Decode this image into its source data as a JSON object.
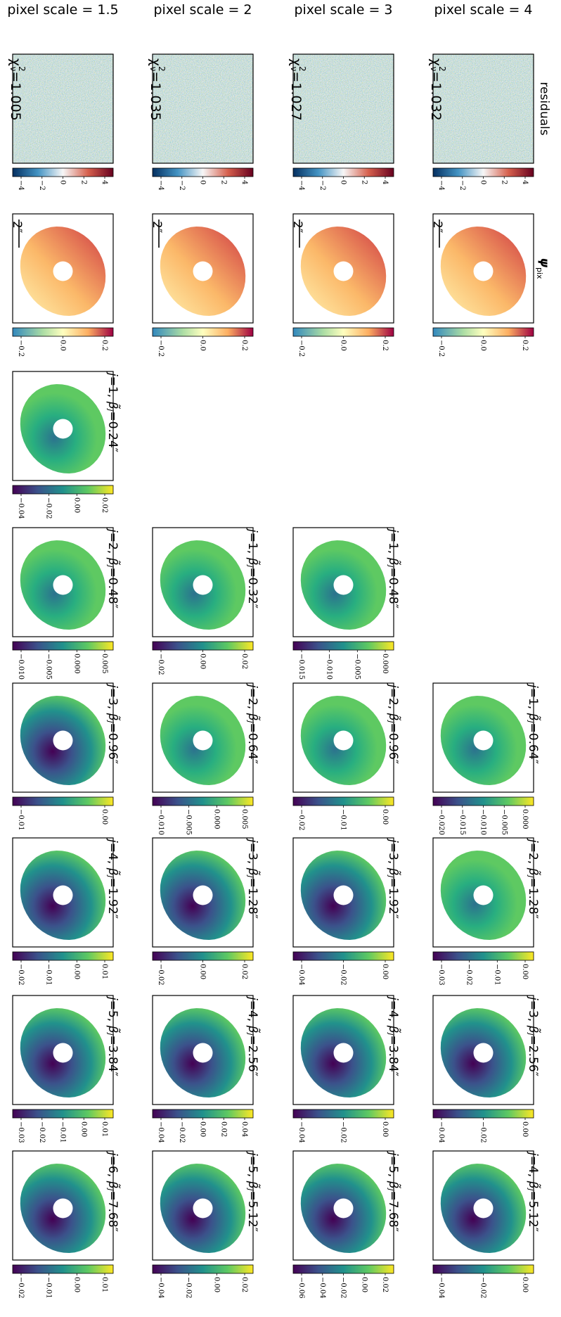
{
  "row_labels": {
    "residuals": "residuals",
    "psi_symbol": "ψ",
    "psi_sub": "pix"
  },
  "chi2_symbol": {
    "symbol": "χ",
    "sup": "2",
    "sub": "ν"
  },
  "wavelet_label": {
    "j_prefix": "j=",
    "sep": ", ",
    "beta_symbol": "β̃",
    "beta_sub": "j",
    "eq": "="
  },
  "columns": [
    {
      "header": "pixel scale = 1.5",
      "residual": {
        "chi2": "=1.005",
        "ticks": [
          "−4",
          "−2",
          "0",
          "2",
          "4"
        ]
      },
      "psi": {
        "scale_bar": "2″",
        "ticks": [
          "−0.2",
          "0.0",
          "0.2"
        ]
      },
      "wavelets": [
        {
          "j": "1",
          "beta": "0.24″",
          "ticks": [
            "−0.04",
            "−0.02",
            "0.00",
            "0.02"
          ]
        },
        {
          "j": "2",
          "beta": "0.48″",
          "ticks": [
            "−0.010",
            "−0.005",
            "0.000",
            "0.005"
          ]
        },
        {
          "j": "3",
          "beta": "0.96″",
          "ticks": [
            "−0.01",
            "0.00"
          ]
        },
        {
          "j": "4",
          "beta": "1.92″",
          "ticks": [
            "−0.02",
            "−0.01",
            "0.00",
            "0.01"
          ]
        },
        {
          "j": "5",
          "beta": "3.84″",
          "ticks": [
            "−0.03",
            "−0.02",
            "−0.01",
            "0.00",
            "0.01"
          ]
        },
        {
          "j": "6",
          "beta": "7.68″",
          "ticks": [
            "−0.02",
            "−0.01",
            "0.00",
            "0.01"
          ]
        }
      ]
    },
    {
      "header": "pixel scale = 2",
      "residual": {
        "chi2": "=1.035",
        "ticks": [
          "−4",
          "−2",
          "0",
          "2",
          "4"
        ]
      },
      "psi": {
        "scale_bar": "2″",
        "ticks": [
          "−0.2",
          "0.0",
          "0.2"
        ]
      },
      "wavelets": [
        {
          "j": "1",
          "beta": "0.32″",
          "ticks": [
            "−0.02",
            "0.00",
            "0.02"
          ]
        },
        {
          "j": "2",
          "beta": "0.64″",
          "ticks": [
            "−0.010",
            "−0.005",
            "0.000",
            "0.005"
          ]
        },
        {
          "j": "3",
          "beta": "1.28″",
          "ticks": [
            "−0.02",
            "0.00",
            "0.02"
          ]
        },
        {
          "j": "4",
          "beta": "2.56″",
          "ticks": [
            "−0.04",
            "−0.02",
            "0.00",
            "0.02",
            "0.04"
          ]
        },
        {
          "j": "5",
          "beta": "5.12″",
          "ticks": [
            "−0.04",
            "−0.02",
            "0.00",
            "0.02"
          ]
        }
      ]
    },
    {
      "header": "pixel scale = 3",
      "residual": {
        "chi2": "=1.027",
        "ticks": [
          "−4",
          "−2",
          "0",
          "2",
          "4"
        ]
      },
      "psi": {
        "scale_bar": "2″",
        "ticks": [
          "−0.2",
          "0.0",
          "0.2"
        ]
      },
      "wavelets": [
        {
          "j": "1",
          "beta": "0.48″",
          "ticks": [
            "−0.015",
            "−0.010",
            "−0.005",
            "0.000"
          ]
        },
        {
          "j": "2",
          "beta": "0.96″",
          "ticks": [
            "−0.02",
            "−0.01",
            "0.00"
          ]
        },
        {
          "j": "3",
          "beta": "1.92″",
          "ticks": [
            "−0.04",
            "−0.02",
            "0.00"
          ]
        },
        {
          "j": "4",
          "beta": "3.84″",
          "ticks": [
            "−0.04",
            "−0.02",
            "0.00"
          ]
        },
        {
          "j": "5",
          "beta": "7.68″",
          "ticks": [
            "−0.06",
            "−0.04",
            "−0.02",
            "0.00",
            "0.02"
          ]
        }
      ]
    },
    {
      "header": "pixel scale = 4",
      "residual": {
        "chi2": "=1.032",
        "ticks": [
          "−4",
          "−2",
          "0",
          "2",
          "4"
        ]
      },
      "psi": {
        "scale_bar": "2″",
        "ticks": [
          "−0.2",
          "0.0",
          "0.2"
        ]
      },
      "wavelets": [
        {
          "j": "1",
          "beta": "0.64″",
          "ticks": [
            "−0.020",
            "−0.015",
            "−0.010",
            "−0.005",
            "0.000"
          ]
        },
        {
          "j": "2",
          "beta": "1.28″",
          "ticks": [
            "−0.03",
            "−0.02",
            "−0.01",
            "0.00"
          ]
        },
        {
          "j": "3",
          "beta": "2.56″",
          "ticks": [
            "−0.04",
            "−0.02",
            "0.00"
          ]
        },
        {
          "j": "4",
          "beta": "5.12″",
          "ticks": [
            "−0.04",
            "−0.02",
            "0.00"
          ]
        }
      ]
    }
  ]
}
